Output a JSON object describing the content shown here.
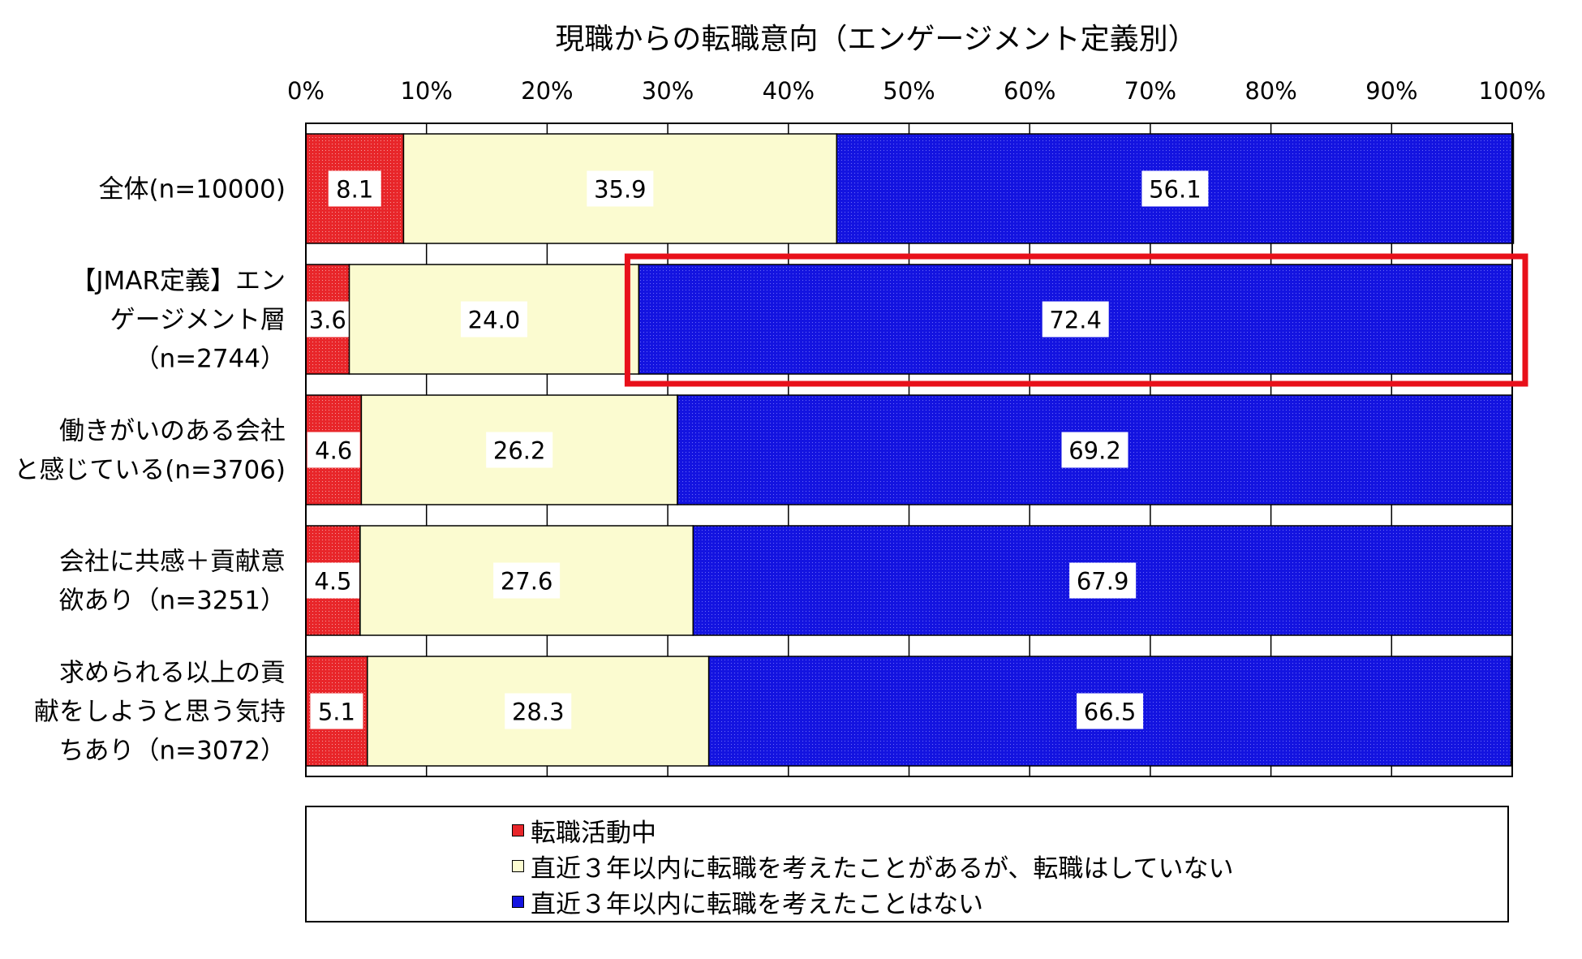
{
  "chart_data": {
    "type": "bar",
    "orientation": "horizontal",
    "stacked": true,
    "title": "現職からの転職意向（エンゲージメント定義別）",
    "xlim": [
      0,
      100
    ],
    "x_ticks": [
      "0%",
      "10%",
      "20%",
      "30%",
      "40%",
      "50%",
      "60%",
      "70%",
      "80%",
      "90%",
      "100%"
    ],
    "categories": [
      [
        "全体(n=10000)"
      ],
      [
        "【JMAR定義】エン",
        "ゲージメント層",
        "（n=2744）"
      ],
      [
        "働きがいのある会社",
        "と感じている(n=3706)"
      ],
      [
        "会社に共感＋貢献意",
        "欲あり（n=3251）"
      ],
      [
        "求められる以上の貢",
        "献をしようと思う気持",
        "ちあり（n=3072）"
      ]
    ],
    "series": [
      {
        "name": "転職活動中",
        "color": "#e8262a",
        "values": [
          8.1,
          3.6,
          4.6,
          4.5,
          5.1
        ]
      },
      {
        "name": "直近３年以内に転職を考えたことがあるが、転職はしていない",
        "color": "#fbfbd0",
        "values": [
          35.9,
          24.0,
          26.2,
          27.6,
          28.3
        ]
      },
      {
        "name": "直近３年以内に転職を考えたことはない",
        "color": "#1414e0",
        "values": [
          56.1,
          72.4,
          69.2,
          67.9,
          66.5
        ]
      }
    ],
    "data_labels": [
      [
        "8.1",
        "35.9",
        "56.1"
      ],
      [
        "3.6",
        "24.0",
        "72.4"
      ],
      [
        "4.6",
        "26.2",
        "69.2"
      ],
      [
        "4.5",
        "27.6",
        "67.9"
      ],
      [
        "5.1",
        "28.3",
        "66.5"
      ]
    ],
    "highlight": {
      "category_index": 1,
      "series_index": 2,
      "color": "#e8101a"
    },
    "grid": "vertical",
    "legend_position": "bottom"
  }
}
